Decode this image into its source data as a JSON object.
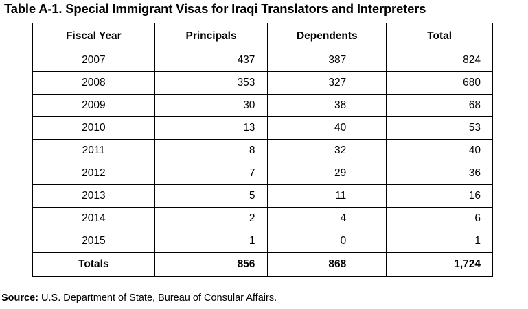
{
  "title": "Table A-1. Special Immigrant Visas for Iraqi Translators and Interpreters",
  "table": {
    "headers": [
      "Fiscal Year",
      "Principals",
      "Dependents",
      "Total"
    ],
    "rows": [
      [
        "2007",
        "437",
        "387",
        "824"
      ],
      [
        "2008",
        "353",
        "327",
        "680"
      ],
      [
        "2009",
        "30",
        "38",
        "68"
      ],
      [
        "2010",
        "13",
        "40",
        "53"
      ],
      [
        "2011",
        "8",
        "32",
        "40"
      ],
      [
        "2012",
        "7",
        "29",
        "36"
      ],
      [
        "2013",
        "5",
        "11",
        "16"
      ],
      [
        "2014",
        "2",
        "4",
        "6"
      ],
      [
        "2015",
        "1",
        "0",
        "1"
      ]
    ],
    "totals": [
      "Totals",
      "856",
      "868",
      "1,724"
    ]
  },
  "source": {
    "label": "Source:",
    "text": "U.S. Department of State, Bureau of Consular Affairs."
  }
}
